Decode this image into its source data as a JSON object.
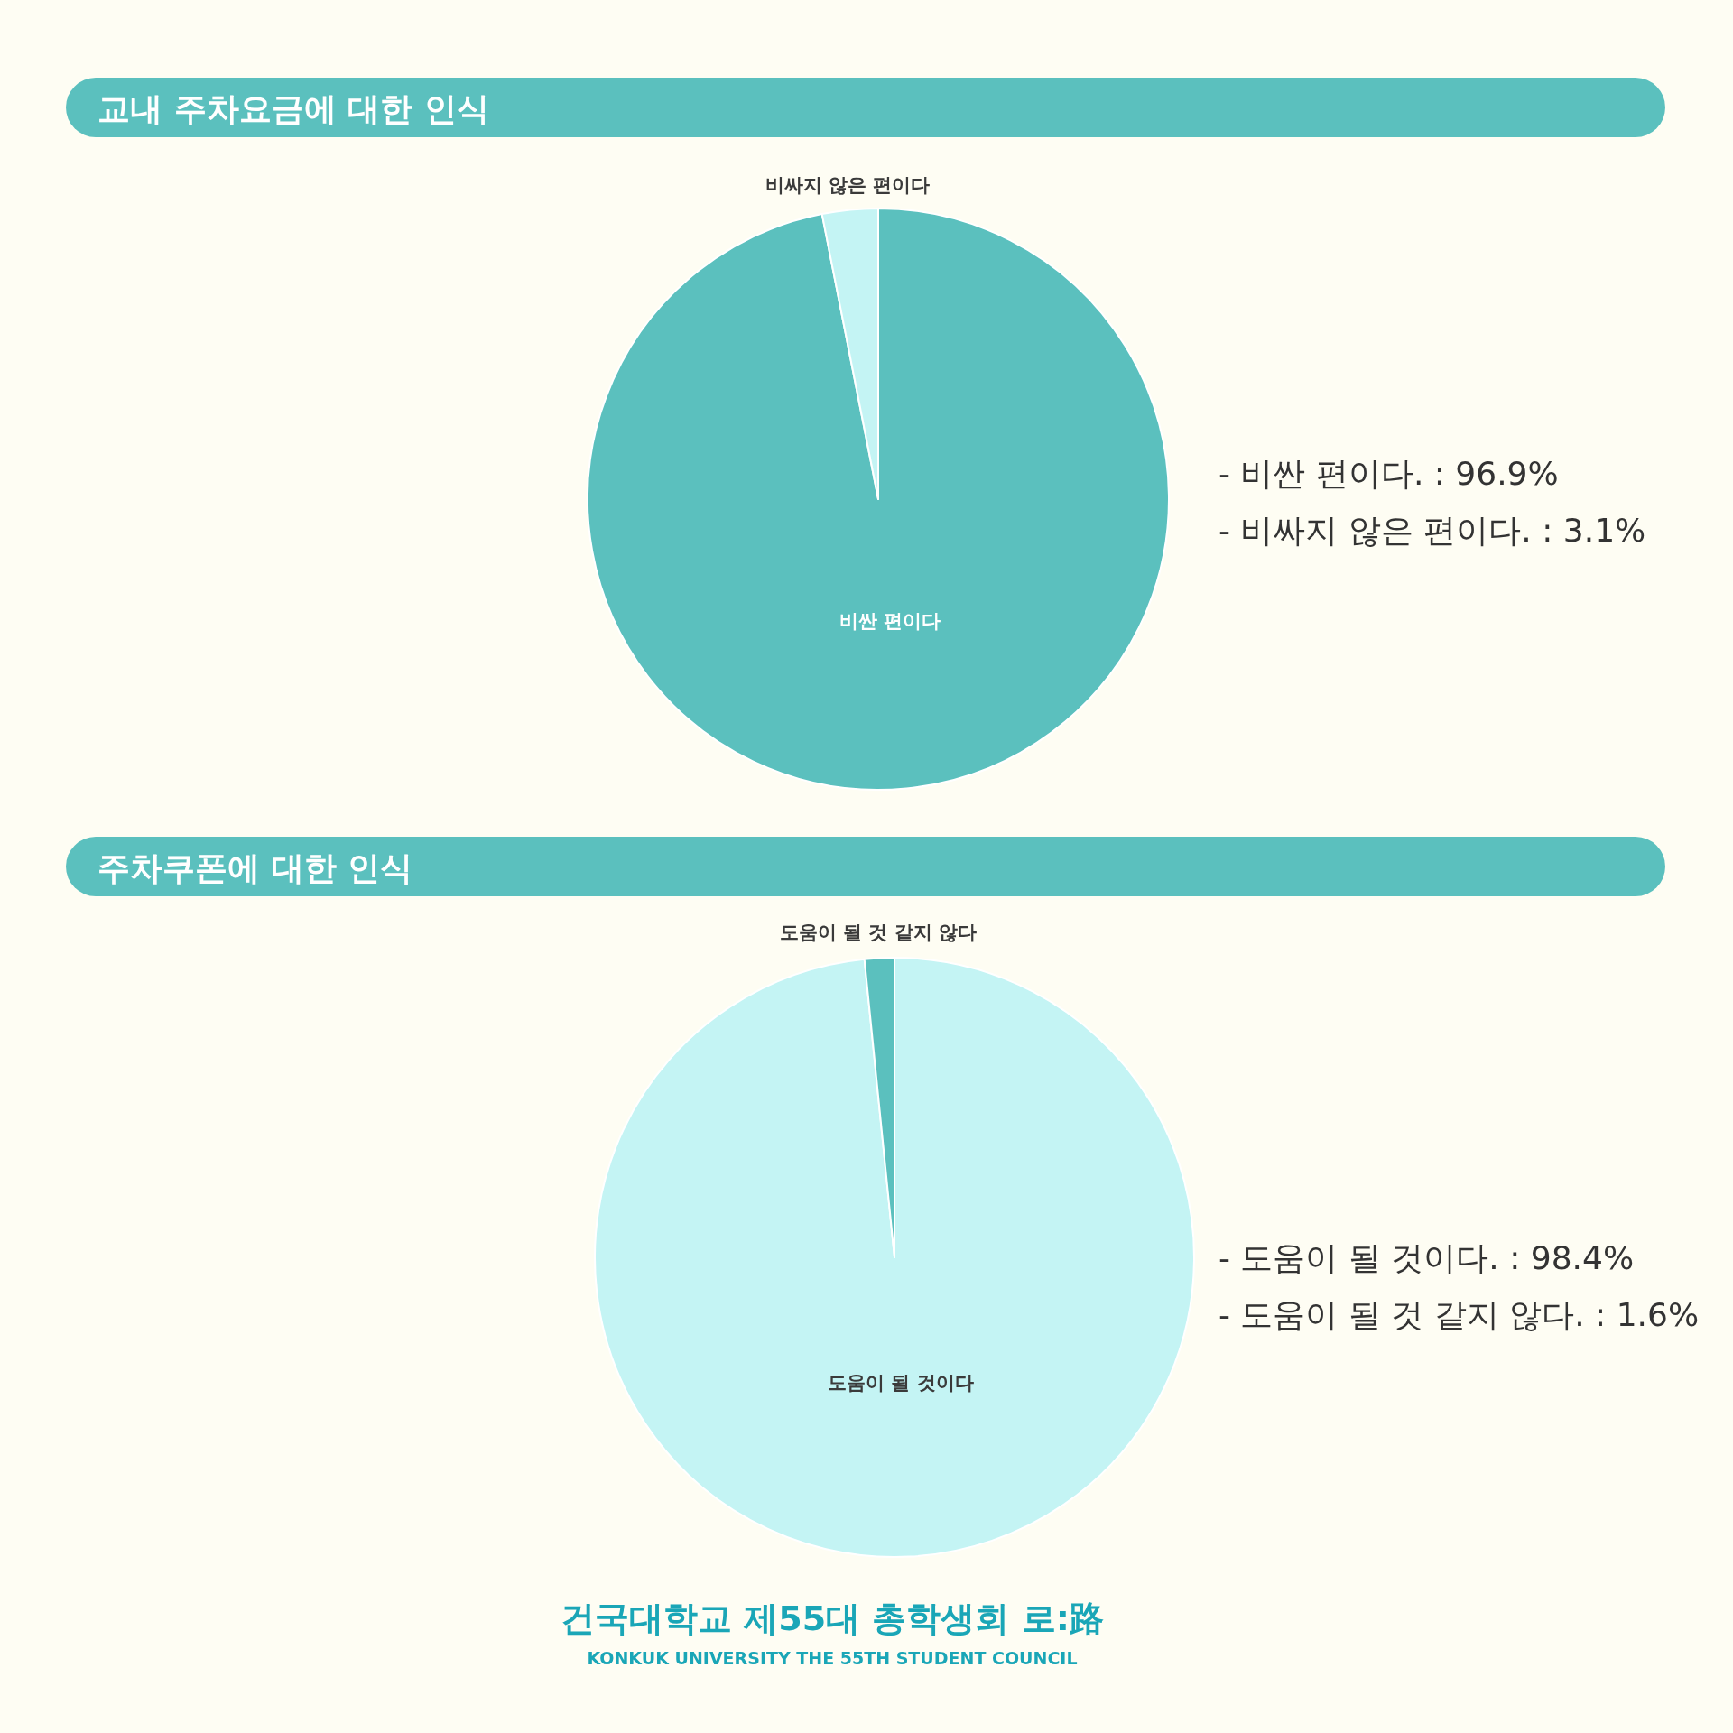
{
  "chart_data": [
    {
      "type": "pie",
      "title": "교내 주차요금에 대한 인식",
      "categories": [
        "비싼 편이다",
        "비싸지 않은 편이다"
      ],
      "values": [
        96.9,
        3.1
      ],
      "colors": [
        "#5bc0be",
        "#c4f4f4"
      ],
      "annotations": [
        "- 비싼 편이다. : 96.9%",
        "- 비싸지 않은 편이다. : 3.1%"
      ]
    },
    {
      "type": "pie",
      "title": "주차쿠폰에 대한 인식",
      "categories": [
        "도움이 될 것이다",
        "도움이 될 것 같지 않다"
      ],
      "values": [
        98.4,
        1.6
      ],
      "colors": [
        "#c4f4f4",
        "#5bc0be"
      ],
      "annotations": [
        "- 도움이 될 것이다. : 98.4%",
        "- 도움이 될 것 같지 않다. : 1.6%",
        "건국대학교 제55대 총학생회 로:路",
        "KONKUK UNIVERSITY THE 55TH STUDENT COUNCIL"
      ]
    }
  ]
}
